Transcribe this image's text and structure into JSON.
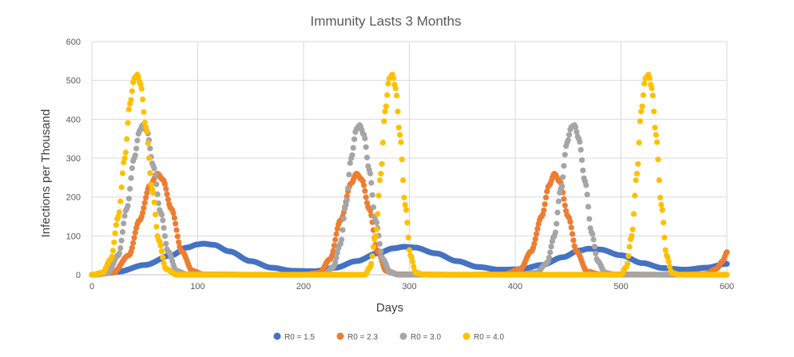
{
  "chart_data": {
    "type": "scatter",
    "title": "Immunity Lasts 3 Months",
    "xlabel": "Days",
    "ylabel": "Infections per Thousand",
    "xlim": [
      0,
      600
    ],
    "ylim": [
      0,
      600
    ],
    "xticks": [
      "0",
      "100",
      "200",
      "300",
      "400",
      "500",
      "600"
    ],
    "yticks": [
      "0",
      "100",
      "200",
      "300",
      "400",
      "500",
      "600"
    ],
    "grid": "major gridlines on both axes",
    "legend_position": "bottom",
    "series": [
      {
        "name": "R0 = 1.5",
        "color": "#4472C4",
        "points": [
          [
            0,
            0
          ],
          [
            25,
            8
          ],
          [
            50,
            25
          ],
          [
            75,
            50
          ],
          [
            90,
            70
          ],
          [
            100,
            78
          ],
          [
            105,
            80
          ],
          [
            115,
            77
          ],
          [
            130,
            60
          ],
          [
            150,
            35
          ],
          [
            170,
            18
          ],
          [
            190,
            10
          ],
          [
            210,
            9
          ],
          [
            230,
            18
          ],
          [
            250,
            35
          ],
          [
            270,
            55
          ],
          [
            285,
            68
          ],
          [
            295,
            72
          ],
          [
            305,
            70
          ],
          [
            325,
            55
          ],
          [
            345,
            35
          ],
          [
            365,
            20
          ],
          [
            385,
            13
          ],
          [
            405,
            14
          ],
          [
            425,
            25
          ],
          [
            445,
            45
          ],
          [
            460,
            62
          ],
          [
            470,
            67
          ],
          [
            480,
            65
          ],
          [
            500,
            50
          ],
          [
            520,
            30
          ],
          [
            540,
            17
          ],
          [
            560,
            13
          ],
          [
            580,
            18
          ],
          [
            600,
            28
          ]
        ]
      },
      {
        "name": "R0 = 2.3",
        "color": "#ED7D31",
        "points": [
          [
            0,
            0
          ],
          [
            20,
            5
          ],
          [
            35,
            50
          ],
          [
            45,
            140
          ],
          [
            55,
            230
          ],
          [
            62,
            260
          ],
          [
            67,
            245
          ],
          [
            75,
            170
          ],
          [
            85,
            60
          ],
          [
            95,
            10
          ],
          [
            105,
            1
          ],
          [
            150,
            0
          ],
          [
            200,
            0
          ],
          [
            215,
            5
          ],
          [
            225,
            40
          ],
          [
            235,
            140
          ],
          [
            245,
            235
          ],
          [
            250,
            260
          ],
          [
            255,
            245
          ],
          [
            262,
            170
          ],
          [
            270,
            60
          ],
          [
            278,
            10
          ],
          [
            290,
            1
          ],
          [
            350,
            0
          ],
          [
            390,
            1
          ],
          [
            405,
            15
          ],
          [
            415,
            60
          ],
          [
            425,
            150
          ],
          [
            432,
            230
          ],
          [
            437,
            260
          ],
          [
            442,
            240
          ],
          [
            450,
            150
          ],
          [
            458,
            60
          ],
          [
            468,
            8
          ],
          [
            480,
            1
          ],
          [
            550,
            0
          ],
          [
            580,
            2
          ],
          [
            590,
            15
          ],
          [
            596,
            35
          ],
          [
            600,
            58
          ]
        ]
      },
      {
        "name": "R0 = 3.0",
        "color": "#A5A5A5",
        "points": [
          [
            0,
            0
          ],
          [
            15,
            5
          ],
          [
            25,
            50
          ],
          [
            33,
            170
          ],
          [
            40,
            300
          ],
          [
            45,
            370
          ],
          [
            48,
            385
          ],
          [
            52,
            370
          ],
          [
            58,
            280
          ],
          [
            65,
            160
          ],
          [
            72,
            60
          ],
          [
            80,
            10
          ],
          [
            90,
            1
          ],
          [
            150,
            0
          ],
          [
            220,
            0
          ],
          [
            228,
            20
          ],
          [
            235,
            80
          ],
          [
            240,
            180
          ],
          [
            245,
            300
          ],
          [
            250,
            375
          ],
          [
            253,
            385
          ],
          [
            257,
            360
          ],
          [
            262,
            270
          ],
          [
            268,
            140
          ],
          [
            275,
            40
          ],
          [
            282,
            5
          ],
          [
            290,
            0
          ],
          [
            400,
            0
          ],
          [
            420,
            5
          ],
          [
            430,
            30
          ],
          [
            437,
            100
          ],
          [
            443,
            220
          ],
          [
            449,
            340
          ],
          [
            453,
            380
          ],
          [
            456,
            385
          ],
          [
            460,
            350
          ],
          [
            466,
            240
          ],
          [
            472,
            110
          ],
          [
            478,
            35
          ],
          [
            485,
            5
          ],
          [
            495,
            0
          ],
          [
            600,
            0
          ]
        ]
      },
      {
        "name": "R0 = 4.0",
        "color": "#FFC000",
        "points": [
          [
            0,
            0
          ],
          [
            10,
            5
          ],
          [
            18,
            40
          ],
          [
            25,
            150
          ],
          [
            31,
            300
          ],
          [
            36,
            440
          ],
          [
            40,
            505
          ],
          [
            43,
            515
          ],
          [
            46,
            490
          ],
          [
            51,
            380
          ],
          [
            57,
            220
          ],
          [
            63,
            90
          ],
          [
            70,
            15
          ],
          [
            80,
            0
          ],
          [
            150,
            0
          ],
          [
            230,
            0
          ],
          [
            258,
            0
          ],
          [
            263,
            20
          ],
          [
            268,
            100
          ],
          [
            273,
            260
          ],
          [
            277,
            420
          ],
          [
            281,
            505
          ],
          [
            284,
            515
          ],
          [
            287,
            480
          ],
          [
            291,
            360
          ],
          [
            296,
            180
          ],
          [
            301,
            50
          ],
          [
            306,
            5
          ],
          [
            315,
            0
          ],
          [
            400,
            0
          ],
          [
            500,
            0
          ],
          [
            505,
            20
          ],
          [
            510,
            100
          ],
          [
            515,
            260
          ],
          [
            519,
            420
          ],
          [
            523,
            505
          ],
          [
            526,
            515
          ],
          [
            529,
            480
          ],
          [
            533,
            360
          ],
          [
            538,
            180
          ],
          [
            543,
            50
          ],
          [
            548,
            5
          ],
          [
            555,
            0
          ],
          [
            600,
            0
          ]
        ]
      }
    ]
  }
}
